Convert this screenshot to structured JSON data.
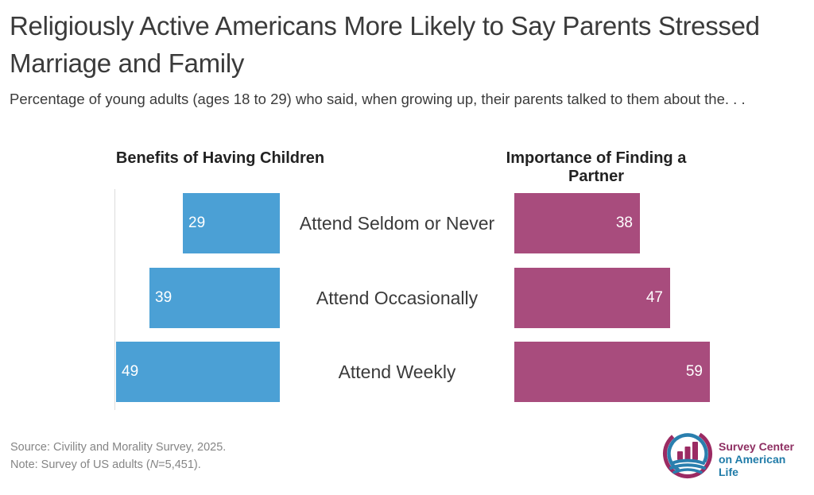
{
  "title": "Religiously Active Americans More Likely to Say Parents Stressed Marriage and Family",
  "subtitle": "Percentage of young adults (ages 18 to 29) who said, when growing up, their parents talked to them about the. . .",
  "chart_data": {
    "type": "bar",
    "orientation": "horizontal-diverging",
    "categories": [
      "Attend Seldom or Never",
      "Attend Occasionally",
      "Attend Weekly"
    ],
    "series": [
      {
        "name": "Benefits of Having Children",
        "side": "left",
        "color": "#4BA0D5",
        "values": [
          29,
          39,
          49
        ]
      },
      {
        "name": "Importance of Finding a Partner",
        "side": "right",
        "color": "#A84C7D",
        "values": [
          38,
          47,
          59
        ]
      }
    ],
    "value_labels_shown": true,
    "value_label_color": "#ffffff",
    "xlim": [
      0,
      60
    ],
    "grid": false,
    "legend": "column-headers"
  },
  "footer": {
    "source": "Source: Civility and Morality Survey, 2025.",
    "note_prefix": "Note: Survey of US adults (",
    "note_n": "N",
    "note_suffix": "=5,451)."
  },
  "logo": {
    "line1": "Survey Center",
    "line2": "on American Life",
    "line1_color": "#8E2F62",
    "line2_color": "#1F7BA8",
    "icon_magenta": "#9B2B63",
    "icon_blue": "#2A7FAE"
  },
  "colors": {
    "background": "#ffffff",
    "title_text": "#3b3b3b",
    "axis_line": "#dcdcdc",
    "footer_text": "#858585"
  }
}
